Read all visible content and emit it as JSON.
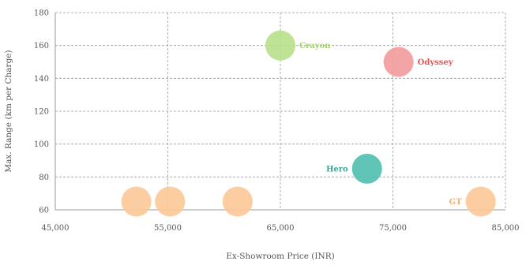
{
  "chart_data": {
    "type": "scatter",
    "title": "",
    "xlabel": "Ex-Showroom Price (INR)",
    "ylabel": "Max. Range (km per Charge)",
    "xlim": [
      45000,
      85000
    ],
    "ylim": [
      60,
      180
    ],
    "x_ticks": [
      45000,
      55000,
      65000,
      75000,
      85000
    ],
    "x_tick_labels": [
      "45,000",
      "55,000",
      "65,000",
      "75,000",
      "85,000"
    ],
    "y_ticks": [
      60,
      80,
      100,
      120,
      140,
      160,
      180
    ],
    "y_tick_labels": [
      "60",
      "80",
      "100",
      "120",
      "140",
      "160",
      "180"
    ],
    "grid": true,
    "grid_style": "dashed",
    "legend": false,
    "points": [
      {
        "label": "Crayon",
        "x": 65000,
        "y": 160,
        "color": "#b8e08a",
        "label_color": "#a9d46f",
        "label_side": "right"
      },
      {
        "label": "Odyssey",
        "x": 75500,
        "y": 150,
        "color": "#f29a9a",
        "label_color": "#e05757",
        "label_side": "right"
      },
      {
        "label": "Hero",
        "x": 72700,
        "y": 85,
        "color": "#4fbfae",
        "label_color": "#3aa897",
        "label_side": "left"
      },
      {
        "label": "GT",
        "x": 82800,
        "y": 65,
        "color": "#fcc896",
        "label_color": "#f5b06b",
        "label_side": "left"
      },
      {
        "label": "",
        "x": 52200,
        "y": 65,
        "color": "#fcc896",
        "label_color": "#f5b06b",
        "label_side": "none"
      },
      {
        "label": "",
        "x": 55200,
        "y": 65,
        "color": "#fcc896",
        "label_color": "#f5b06b",
        "label_side": "none"
      },
      {
        "label": "",
        "x": 61200,
        "y": 65,
        "color": "#fcc896",
        "label_color": "#f5b06b",
        "label_side": "none"
      }
    ],
    "colors": {
      "axis": "#999999",
      "grid": "#9a9a9a",
      "text": "#555555"
    }
  }
}
